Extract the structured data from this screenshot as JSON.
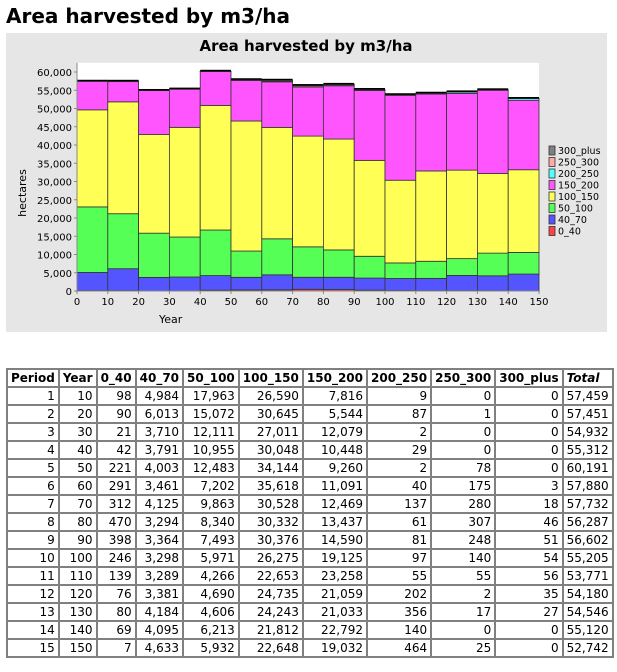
{
  "page_title": "Area harvested by m3/ha",
  "chart_data": {
    "type": "bar",
    "stacked": true,
    "title": "Area harvested by m3/ha",
    "xlabel": "Year",
    "ylabel": "hectares",
    "xlim": [
      0,
      150
    ],
    "ylim": [
      0,
      62500
    ],
    "xticks": [
      "0",
      "10",
      "20",
      "30",
      "40",
      "50",
      "60",
      "70",
      "80",
      "90",
      "100",
      "110",
      "120",
      "130",
      "140",
      "150"
    ],
    "yticks": [
      "0",
      "5,000",
      "10,000",
      "15,000",
      "20,000",
      "25,000",
      "30,000",
      "35,000",
      "40,000",
      "45,000",
      "50,000",
      "55,000",
      "60,000"
    ],
    "legend_position": "right",
    "categories": [
      10,
      20,
      30,
      40,
      50,
      60,
      70,
      80,
      90,
      100,
      110,
      120,
      130,
      140,
      150
    ],
    "series": [
      {
        "name": "0_40",
        "color": "#ff4444",
        "values": [
          98,
          90,
          21,
          42,
          221,
          291,
          312,
          470,
          398,
          246,
          139,
          76,
          80,
          69,
          7
        ]
      },
      {
        "name": "40_70",
        "color": "#5555ff",
        "values": [
          4984,
          6013,
          3710,
          3791,
          4003,
          3461,
          4125,
          3294,
          3364,
          3298,
          3289,
          3381,
          4184,
          4095,
          4633
        ]
      },
      {
        "name": "50_100",
        "color": "#55ff55",
        "values": [
          17963,
          15072,
          12111,
          10955,
          12483,
          7202,
          9863,
          8340,
          7493,
          5971,
          4266,
          4690,
          4606,
          6213,
          5932
        ]
      },
      {
        "name": "100_150",
        "color": "#ffff55",
        "values": [
          26590,
          30645,
          27011,
          30048,
          34144,
          35618,
          30528,
          30332,
          30376,
          26275,
          22653,
          24735,
          24243,
          21812,
          22648
        ]
      },
      {
        "name": "150_200",
        "color": "#ff55ff",
        "values": [
          7816,
          5544,
          12079,
          10448,
          9260,
          11091,
          12469,
          13437,
          14590,
          19125,
          23258,
          21059,
          21033,
          22792,
          19032
        ]
      },
      {
        "name": "200_250",
        "color": "#55ffff",
        "values": [
          9,
          87,
          2,
          29,
          2,
          40,
          137,
          61,
          81,
          97,
          55,
          202,
          356,
          140,
          464
        ]
      },
      {
        "name": "250_300",
        "color": "#ffaaaa",
        "values": [
          0,
          1,
          0,
          0,
          78,
          175,
          280,
          307,
          248,
          140,
          55,
          2,
          17,
          0,
          25
        ]
      },
      {
        "name": "300_plus",
        "color": "#808080",
        "values": [
          0,
          0,
          0,
          0,
          0,
          3,
          18,
          46,
          51,
          54,
          56,
          35,
          27,
          0,
          0
        ]
      }
    ]
  },
  "table": {
    "headers": [
      "Period",
      "Year",
      "0_40",
      "40_70",
      "50_100",
      "100_150",
      "150_200",
      "200_250",
      "250_300",
      "300_plus",
      "Total"
    ],
    "rows": [
      [
        "1",
        "10",
        "98",
        "4,984",
        "17,963",
        "26,590",
        "7,816",
        "9",
        "0",
        "0",
        "57,459"
      ],
      [
        "2",
        "20",
        "90",
        "6,013",
        "15,072",
        "30,645",
        "5,544",
        "87",
        "1",
        "0",
        "57,451"
      ],
      [
        "3",
        "30",
        "21",
        "3,710",
        "12,111",
        "27,011",
        "12,079",
        "2",
        "0",
        "0",
        "54,932"
      ],
      [
        "4",
        "40",
        "42",
        "3,791",
        "10,955",
        "30,048",
        "10,448",
        "29",
        "0",
        "0",
        "55,312"
      ],
      [
        "5",
        "50",
        "221",
        "4,003",
        "12,483",
        "34,144",
        "9,260",
        "2",
        "78",
        "0",
        "60,191"
      ],
      [
        "6",
        "60",
        "291",
        "3,461",
        "7,202",
        "35,618",
        "11,091",
        "40",
        "175",
        "3",
        "57,880"
      ],
      [
        "7",
        "70",
        "312",
        "4,125",
        "9,863",
        "30,528",
        "12,469",
        "137",
        "280",
        "18",
        "57,732"
      ],
      [
        "8",
        "80",
        "470",
        "3,294",
        "8,340",
        "30,332",
        "13,437",
        "61",
        "307",
        "46",
        "56,287"
      ],
      [
        "9",
        "90",
        "398",
        "3,364",
        "7,493",
        "30,376",
        "14,590",
        "81",
        "248",
        "51",
        "56,602"
      ],
      [
        "10",
        "100",
        "246",
        "3,298",
        "5,971",
        "26,275",
        "19,125",
        "97",
        "140",
        "54",
        "55,205"
      ],
      [
        "11",
        "110",
        "139",
        "3,289",
        "4,266",
        "22,653",
        "23,258",
        "55",
        "55",
        "56",
        "53,771"
      ],
      [
        "12",
        "120",
        "76",
        "3,381",
        "4,690",
        "24,735",
        "21,059",
        "202",
        "2",
        "35",
        "54,180"
      ],
      [
        "13",
        "130",
        "80",
        "4,184",
        "4,606",
        "24,243",
        "21,033",
        "356",
        "17",
        "27",
        "54,546"
      ],
      [
        "14",
        "140",
        "69",
        "4,095",
        "6,213",
        "21,812",
        "22,792",
        "140",
        "0",
        "0",
        "55,120"
      ],
      [
        "15",
        "150",
        "7",
        "4,633",
        "5,932",
        "22,648",
        "19,032",
        "464",
        "25",
        "0",
        "52,742"
      ]
    ]
  }
}
